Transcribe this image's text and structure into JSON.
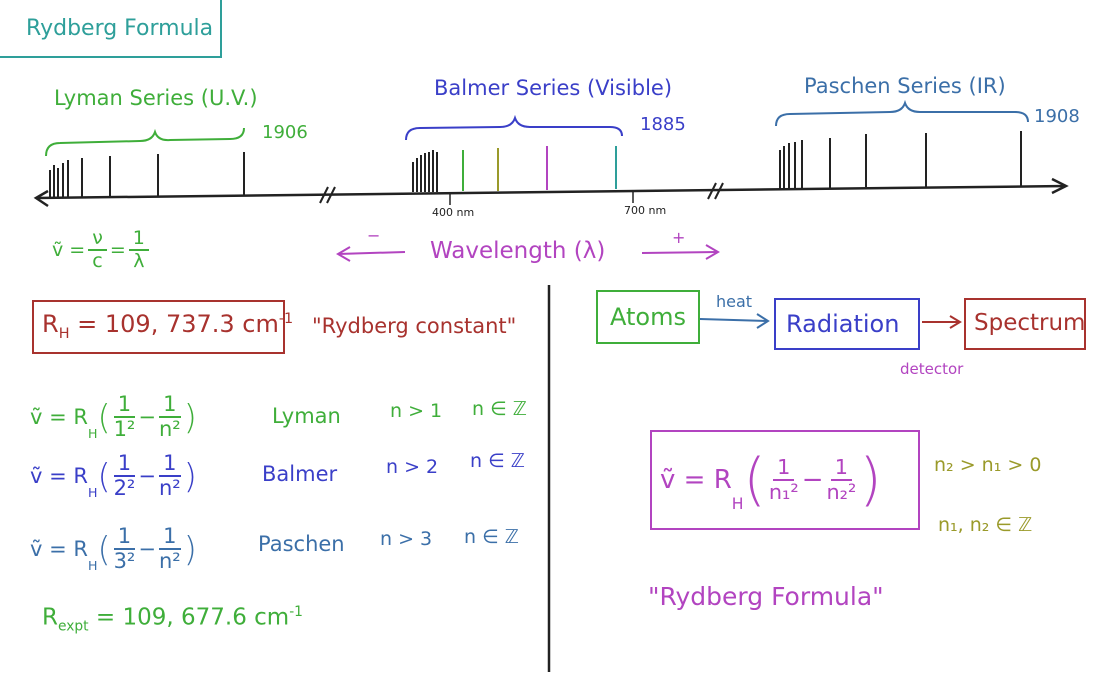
{
  "title": "Rydberg Formula",
  "colors": {
    "teal": "#2e9f9a",
    "green": "#3fae3a",
    "blue": "#3a3fc8",
    "steelblue": "#3b6fa8",
    "purple": "#b244c0",
    "darkred": "#a8322e",
    "olive": "#9a9a2a",
    "black": "#222222"
  },
  "spectrum": {
    "lyman_label": "Lyman Series (U.V.)",
    "lyman_year": "1906",
    "balmer_label": "Balmer Series (Visible)",
    "balmer_year": "1885",
    "paschen_label": "Paschen Series (IR)",
    "paschen_year": "1908",
    "tick_400": "400 nm",
    "tick_700": "700 nm",
    "wavelength_label": "Wavelength (λ)",
    "minus": "−",
    "plus": "+"
  },
  "wavenumber_def": {
    "lhs": "ṽ =",
    "num1": "ν",
    "den1": "c",
    "eq": "=",
    "num2": "1",
    "den2": "λ"
  },
  "constant": {
    "value": "R",
    "sub": "H",
    "rest": " = 109, 737.3 cm",
    "sup": "-1",
    "name": "\"Rydberg constant\""
  },
  "series_eqs": [
    {
      "lhs": "ṽ = R",
      "sub": "H",
      "num1": "1",
      "den1": "1²",
      "num2": "1",
      "den2": "n²",
      "name": "Lyman",
      "cond": "n > 1",
      "set": "n ∈ ℤ"
    },
    {
      "lhs": "ṽ = R",
      "sub": "H",
      "num1": "1",
      "den1": "2²",
      "num2": "1",
      "den2": "n²",
      "name": "Balmer",
      "cond": "n > 2",
      "set": "n ∈ ℤ"
    },
    {
      "lhs": "ṽ = R",
      "sub": "H",
      "num1": "1",
      "den1": "3²",
      "num2": "1",
      "den2": "n²",
      "name": "Paschen",
      "cond": "n > 3",
      "set": "n ∈ ℤ"
    }
  ],
  "experimental": {
    "value": "R",
    "sub": "expt",
    "rest": " = 109, 677.6 cm",
    "sup": "-1"
  },
  "flow": {
    "atoms": "Atoms",
    "heat": "heat",
    "radiation": "Radiation",
    "detector": "detector",
    "spectrum": "Spectrum"
  },
  "general": {
    "lhs": "ṽ = R",
    "sub": "H",
    "num1": "1",
    "den1": "n₁²",
    "num2": "1",
    "den2": "n₂²",
    "cond1": "n₂ > n₁ > 0",
    "cond2": "n₁, n₂ ∈ ℤ",
    "name": "\"Rydberg Formula\""
  }
}
